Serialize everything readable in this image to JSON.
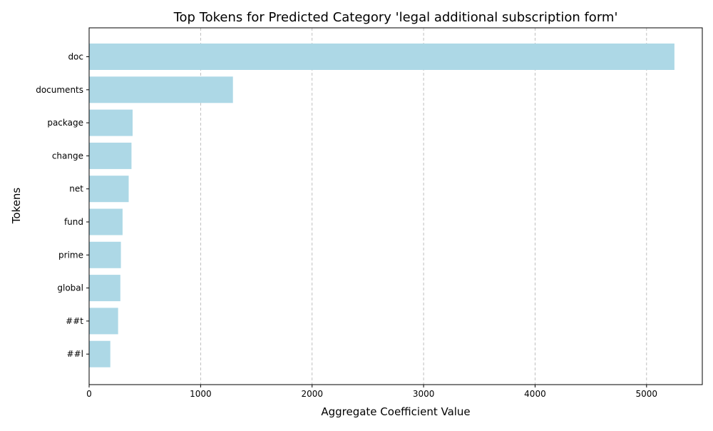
{
  "chart_data": {
    "type": "bar",
    "orientation": "horizontal",
    "title": "Top Tokens for Predicted Category 'legal additional subscription form'",
    "xlabel": "Aggregate Coefficient Value",
    "ylabel": "Tokens",
    "categories": [
      "doc",
      "documents",
      "package",
      "change",
      "net",
      "fund",
      "prime",
      "global",
      "##t",
      "##l"
    ],
    "values": [
      5250,
      1290,
      390,
      380,
      355,
      300,
      285,
      280,
      260,
      190
    ],
    "xlim": [
      0,
      5500
    ],
    "xticks": [
      0,
      1000,
      2000,
      3000,
      4000,
      5000
    ],
    "grid": "x dashed",
    "bar_color": "#add8e6"
  }
}
